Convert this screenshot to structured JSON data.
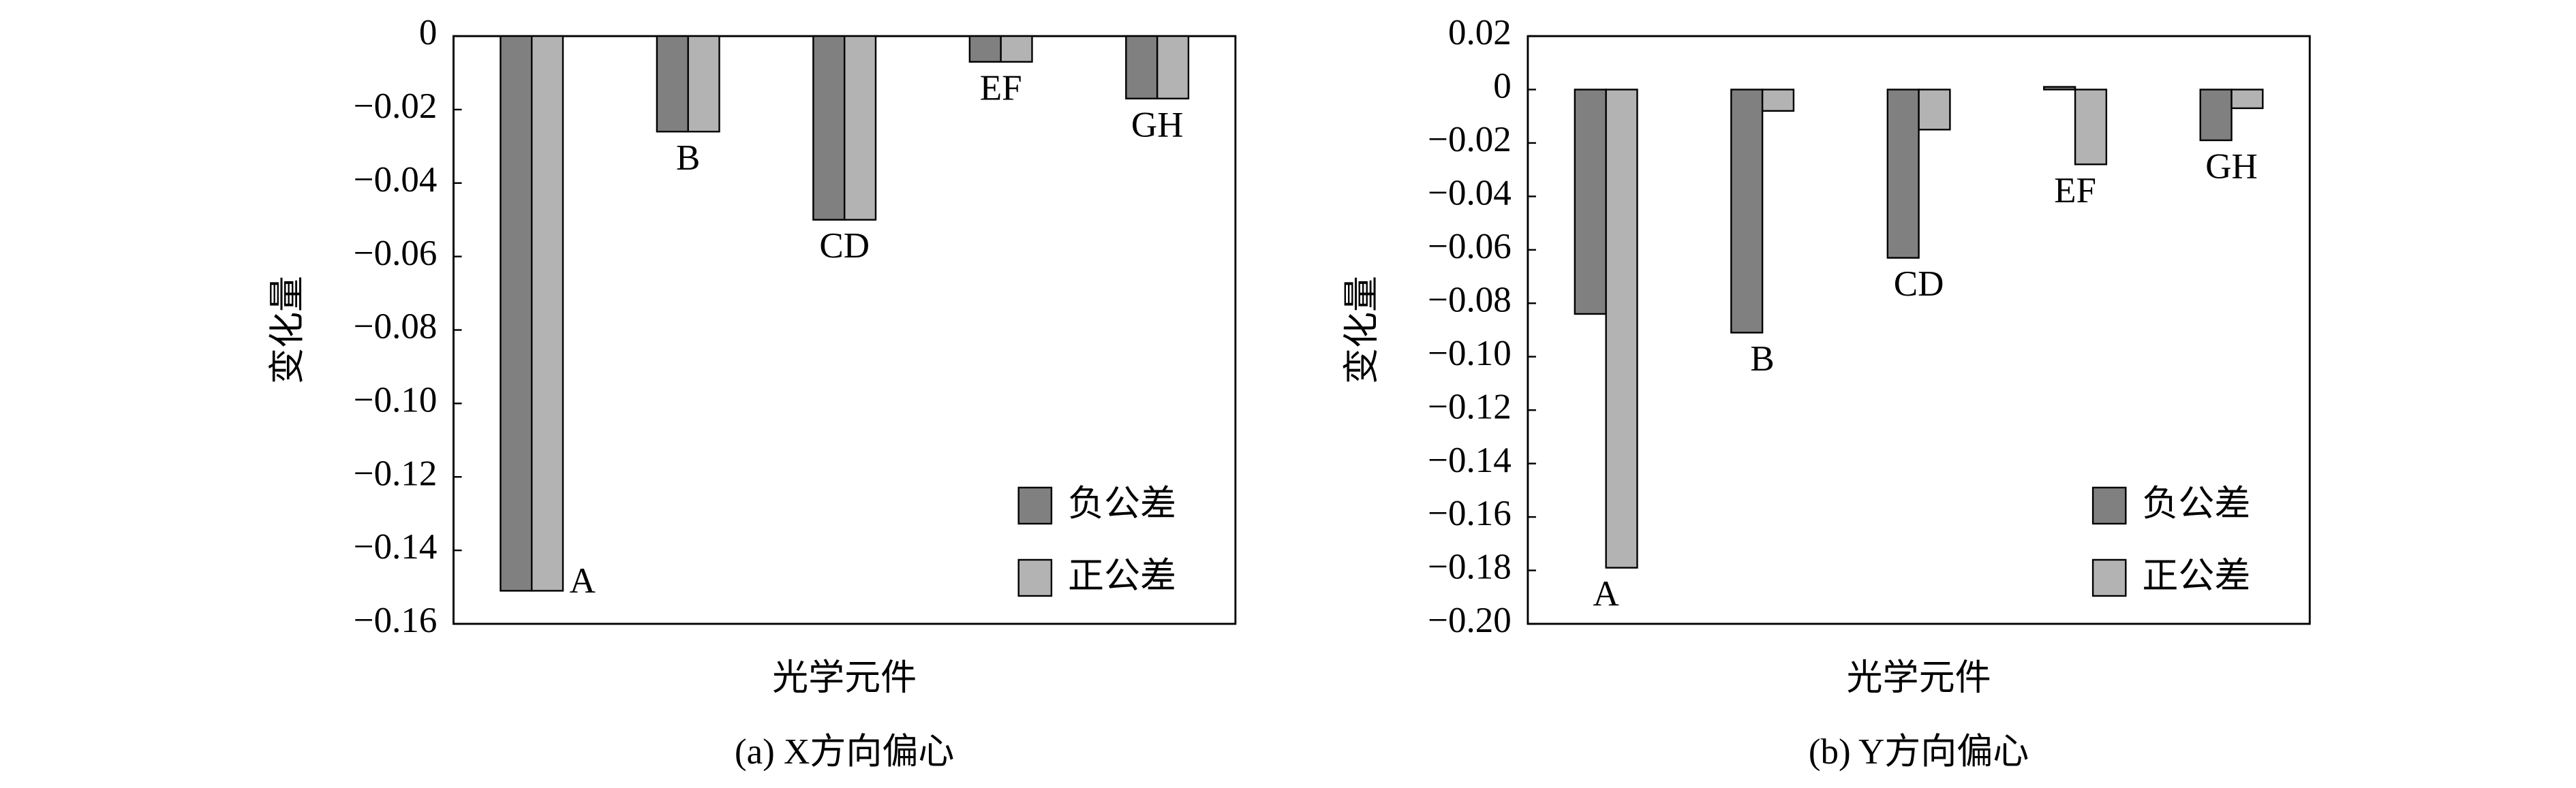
{
  "chart_data": [
    {
      "type": "bar",
      "caption": "(a) X方向偏心",
      "xlabel": "光学元件",
      "ylabel": "变化量",
      "categories": [
        "A",
        "B",
        "CD",
        "EF",
        "GH"
      ],
      "series": [
        {
          "name": "负公差",
          "color": "#808080",
          "values": [
            -0.151,
            -0.026,
            -0.05,
            -0.007,
            -0.017
          ]
        },
        {
          "name": "正公差",
          "color": "#b3b3b3",
          "values": [
            -0.151,
            -0.026,
            -0.05,
            -0.007,
            -0.017
          ]
        }
      ],
      "ylim": [
        -0.16,
        0
      ],
      "yticks": [
        0,
        {
          "value": -0.02,
          "label": "−0.02"
        },
        {
          "value": -0.04,
          "label": "−0.04"
        },
        {
          "value": -0.06,
          "label": "−0.06"
        },
        {
          "value": -0.08,
          "label": "−0.08"
        },
        {
          "value": -0.1,
          "label": "−0.10"
        },
        {
          "value": -0.12,
          "label": "−0.12"
        },
        {
          "value": -0.14,
          "label": "−0.14"
        },
        {
          "value": -0.16,
          "label": "−0.16"
        }
      ],
      "grid": false,
      "legend": "lower right"
    },
    {
      "type": "bar",
      "caption": "(b) Y方向偏心",
      "xlabel": "光学元件",
      "ylabel": "变化量",
      "categories": [
        "A",
        "B",
        "CD",
        "EF",
        "GH"
      ],
      "series": [
        {
          "name": "负公差",
          "color": "#808080",
          "values": [
            -0.084,
            -0.091,
            -0.063,
            0.001,
            -0.019
          ]
        },
        {
          "name": "正公差",
          "color": "#b3b3b3",
          "values": [
            -0.179,
            -0.008,
            -0.015,
            -0.028,
            -0.007
          ]
        }
      ],
      "ylim": [
        -0.2,
        0.02
      ],
      "yticks": [
        {
          "value": 0.02,
          "label": "0.02"
        },
        0,
        {
          "value": -0.02,
          "label": "−0.02"
        },
        {
          "value": -0.04,
          "label": "−0.04"
        },
        {
          "value": -0.06,
          "label": "−0.06"
        },
        {
          "value": -0.08,
          "label": "−0.08"
        },
        {
          "value": -0.1,
          "label": "−0.10"
        },
        {
          "value": -0.12,
          "label": "−0.12"
        },
        {
          "value": -0.14,
          "label": "−0.14"
        },
        {
          "value": -0.16,
          "label": "−0.16"
        },
        {
          "value": -0.18,
          "label": "−0.18"
        },
        {
          "value": -0.2,
          "label": "−0.20"
        }
      ],
      "grid": false,
      "legend": "lower right"
    }
  ]
}
